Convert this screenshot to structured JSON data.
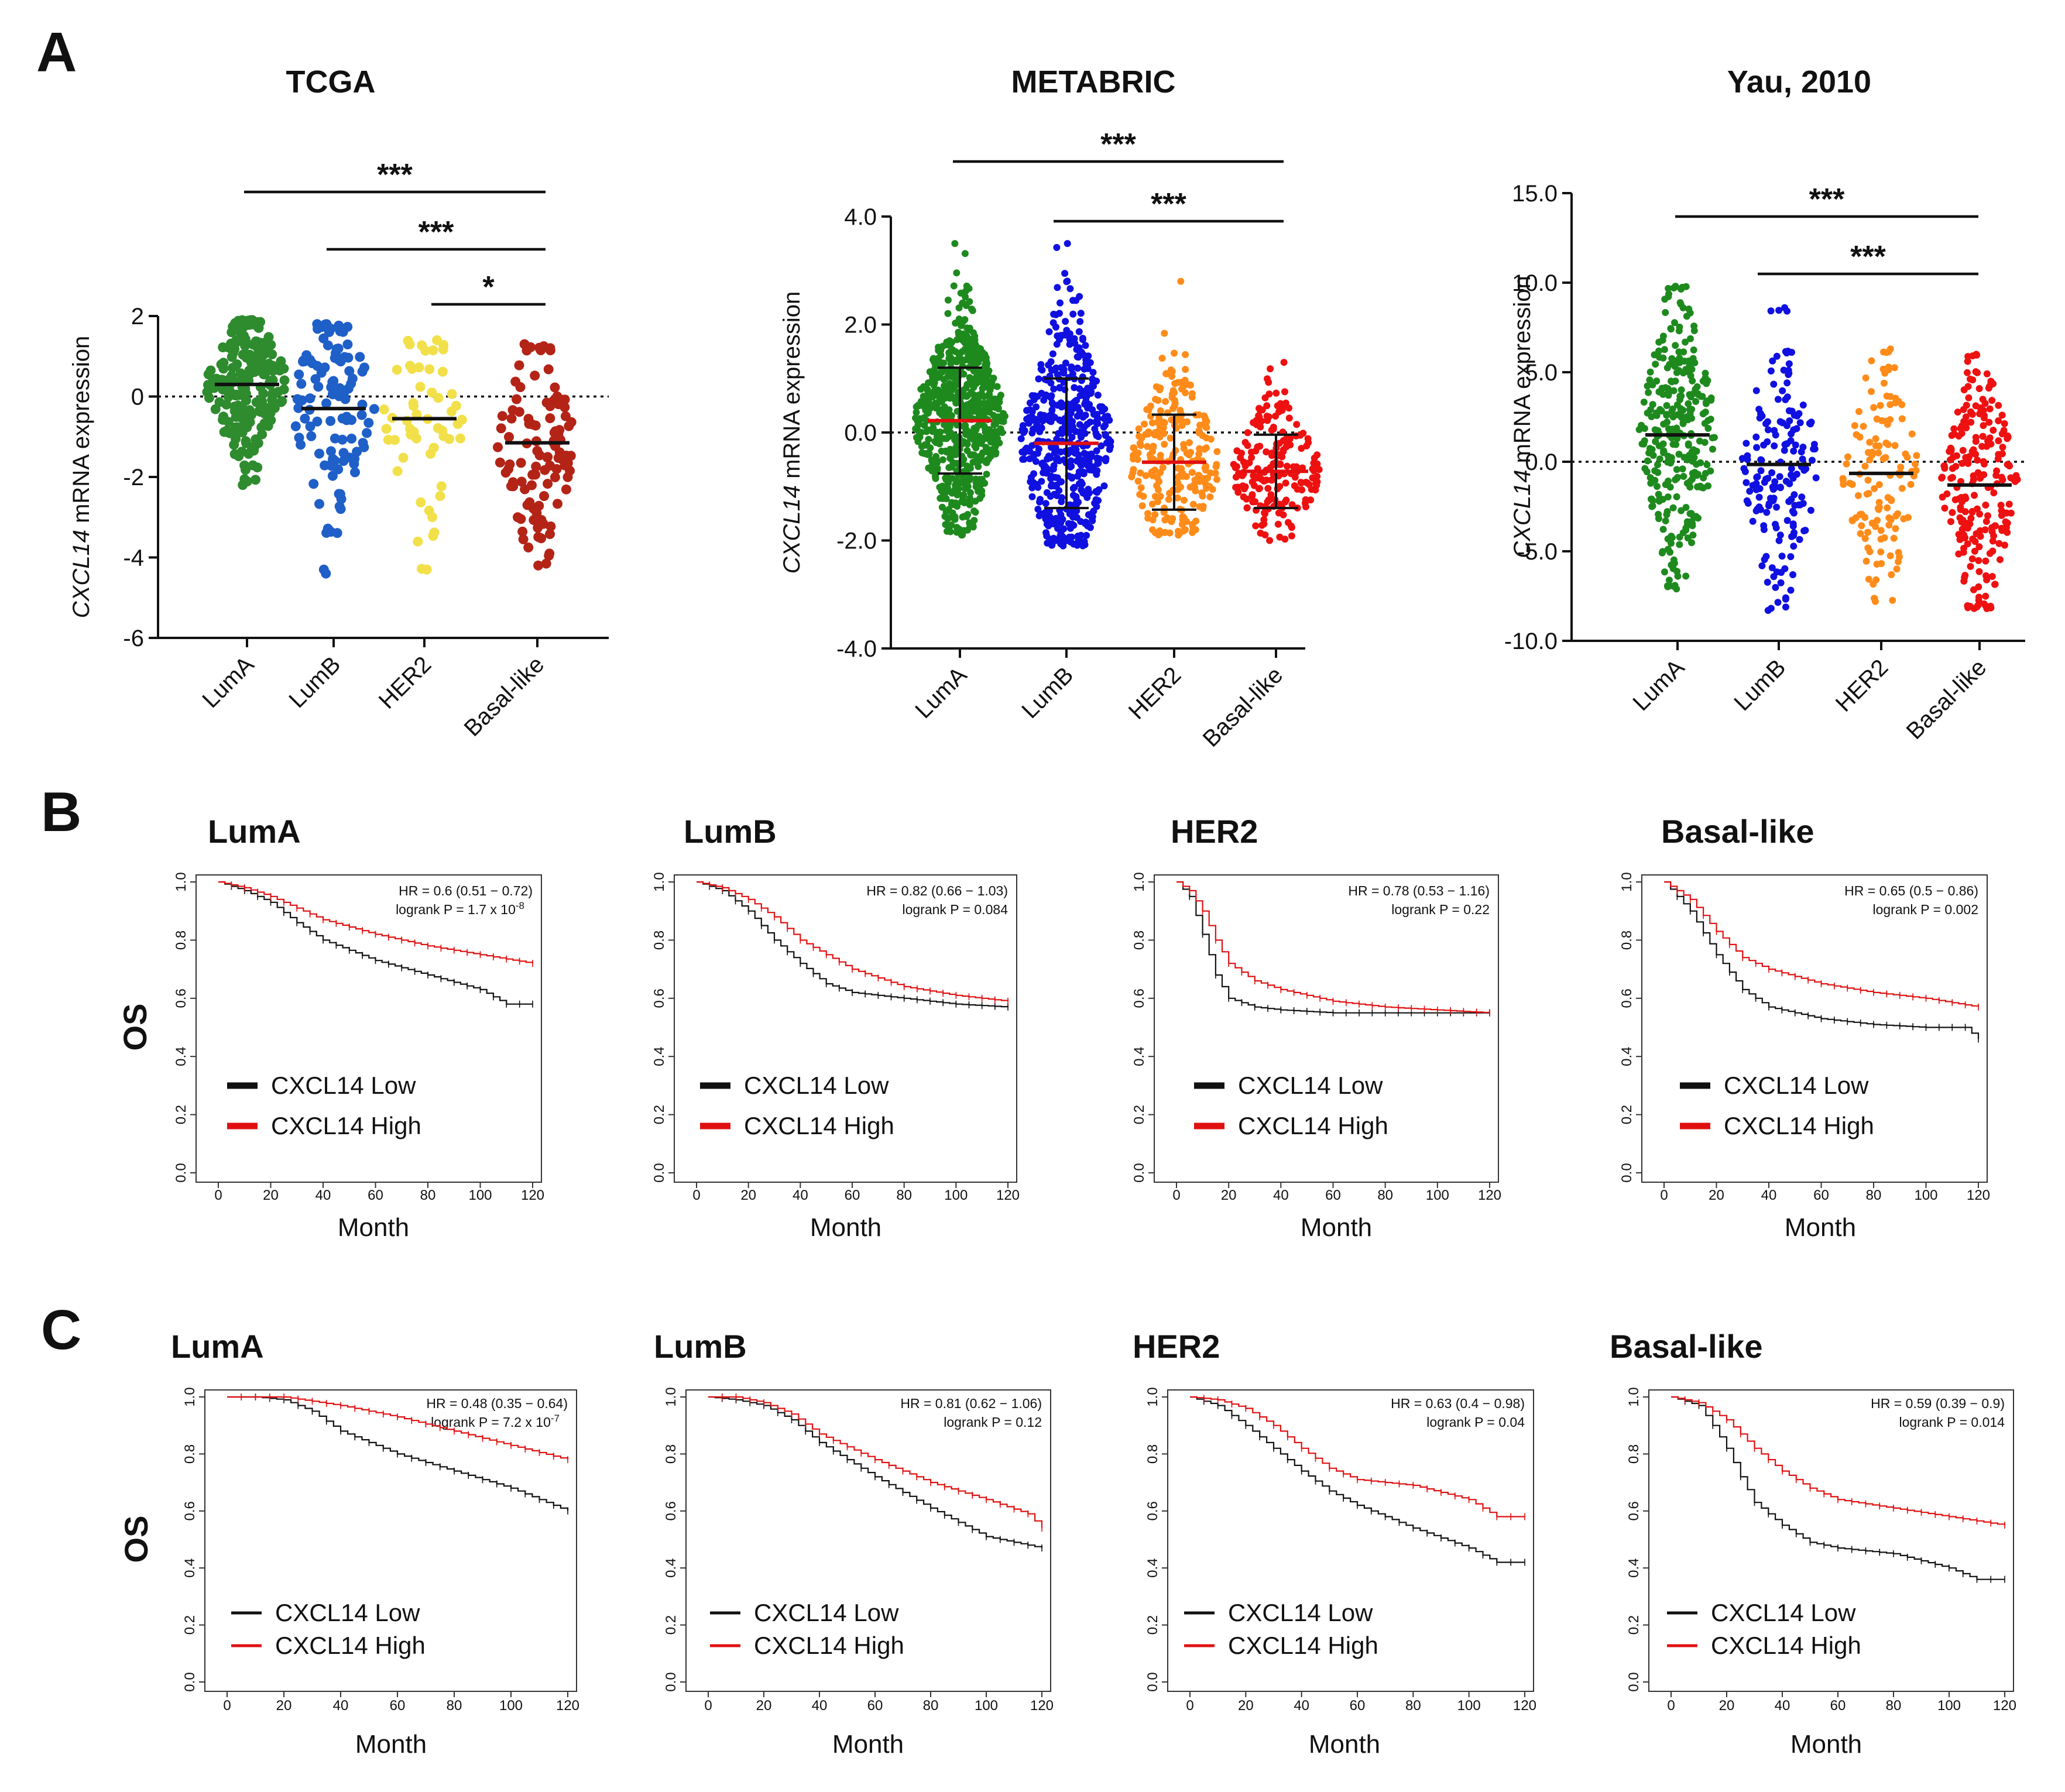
{
  "panels": {
    "a": "A",
    "b": "B",
    "c": "C"
  },
  "chart_data": [
    {
      "type": "scatter",
      "panel": "A",
      "title": "TCGA",
      "ylabel_italic": "CXCL14",
      "ylabel_rest": " mRNA expression",
      "categories": [
        "LumA",
        "LumB",
        "HER2",
        "Basal-like"
      ],
      "colors": [
        "#2e8b2e",
        "#1f5fc8",
        "#f2e04a",
        "#b32417"
      ],
      "ylim": [
        -6,
        2
      ],
      "yticks": [
        2,
        0,
        -2,
        -4,
        -6
      ],
      "ytick_labels": [
        "2",
        "0",
        "-2",
        "-4",
        "-6"
      ],
      "counts": [
        220,
        110,
        55,
        110
      ],
      "ranges": [
        [
          -2.2,
          1.9
        ],
        [
          -4.4,
          1.8
        ],
        [
          -4.3,
          1.4
        ],
        [
          -4.2,
          1.3
        ]
      ],
      "means": [
        0.3,
        -0.3,
        -0.55,
        -1.15
      ],
      "mean_line_color": "#111111",
      "sd": null,
      "significance": [
        {
          "from": 0,
          "to": 3,
          "label": "***"
        },
        {
          "from": 1,
          "to": 3,
          "label": "***"
        },
        {
          "from": 2,
          "to": 3,
          "label": "*"
        }
      ]
    },
    {
      "type": "scatter",
      "panel": "A",
      "title": "METABRIC",
      "ylabel_italic": "CXCL14",
      "ylabel_rest": " mRNA expression",
      "categories": [
        "LumA",
        "LumB",
        "HER2",
        "Basal-like"
      ],
      "colors": [
        "#1e8a1e",
        "#1010e0",
        "#ff8c1a",
        "#ee1111"
      ],
      "ylim": [
        -4,
        4
      ],
      "yticks": [
        4,
        2,
        0,
        -2,
        -4
      ],
      "ytick_labels": [
        "4.0",
        "2.0",
        "0.0",
        "-2.0",
        "-4.0"
      ],
      "counts": [
        680,
        480,
        240,
        200
      ],
      "ranges": [
        [
          -1.9,
          3.5
        ],
        [
          -2.1,
          3.5
        ],
        [
          -1.9,
          2.8
        ],
        [
          -2.0,
          1.3
        ]
      ],
      "means": [
        0.22,
        -0.2,
        -0.55,
        -0.72
      ],
      "mean_line_color": "#e01010",
      "sd": [
        0.98,
        1.2,
        0.88,
        0.68
      ],
      "significance": [
        {
          "from": 0,
          "to": 3,
          "label": "***"
        },
        {
          "from": 1,
          "to": 3,
          "label": "***"
        }
      ]
    },
    {
      "type": "scatter",
      "panel": "A",
      "title": "Yau, 2010",
      "ylabel_italic": "CXCL14",
      "ylabel_rest": " mRNA expression",
      "categories": [
        "LumA",
        "LumB",
        "HER2",
        "Basal-like"
      ],
      "colors": [
        "#1e8a1e",
        "#1010e0",
        "#ff8c1a",
        "#ee1111"
      ],
      "ylim": [
        -10,
        15
      ],
      "yticks": [
        15,
        10,
        5,
        0,
        -5,
        -10
      ],
      "ytick_labels": [
        "15.0",
        "10.0",
        "5.0",
        "0.0",
        "-5.0",
        "-10.0"
      ],
      "counts": [
        300,
        170,
        130,
        230
      ],
      "ranges": [
        [
          -7.1,
          9.8
        ],
        [
          -8.3,
          8.6
        ],
        [
          -7.8,
          6.3
        ],
        [
          -8.2,
          6.0
        ]
      ],
      "means": [
        1.5,
        -0.15,
        -0.65,
        -1.3
      ],
      "mean_line_color": "#111111",
      "sd": null,
      "significance": [
        {
          "from": 0,
          "to": 3,
          "label": "***"
        },
        {
          "from": 1,
          "to": 3,
          "label": "***"
        }
      ]
    },
    {
      "type": "line",
      "panel": "B",
      "title": "LumA",
      "xlabel": "Month",
      "ylabel": "OS",
      "xlim": [
        0,
        120
      ],
      "ylim": [
        0,
        1
      ],
      "xticks": [
        0,
        20,
        40,
        60,
        80,
        100,
        120
      ],
      "yticks": [
        0.0,
        0.2,
        0.4,
        0.6,
        0.8,
        1.0
      ],
      "ytick_labels": [
        "0.0",
        "0.2",
        "0.4",
        "0.6",
        "0.8",
        "1.0"
      ],
      "hr_text": "HR = 0.6 (0.51 − 0.72)",
      "p_text": "logrank P = 1.7 x 10",
      "p_exp": "-8",
      "series": [
        {
          "name": "CXCL14 Low",
          "color": "#111111",
          "x": [
            0,
            10,
            20,
            30,
            40,
            60,
            80,
            100,
            110,
            120
          ],
          "y": [
            1.0,
            0.97,
            0.93,
            0.86,
            0.8,
            0.73,
            0.68,
            0.63,
            0.58,
            0.58
          ]
        },
        {
          "name": "CXCL14 High",
          "color": "#e01010",
          "x": [
            0,
            10,
            20,
            30,
            40,
            60,
            80,
            100,
            120
          ],
          "y": [
            1.0,
            0.98,
            0.95,
            0.91,
            0.87,
            0.82,
            0.78,
            0.75,
            0.72
          ]
        }
      ]
    },
    {
      "type": "line",
      "panel": "B",
      "title": "LumB",
      "xlabel": "Month",
      "ylabel": "OS",
      "xlim": [
        0,
        120
      ],
      "ylim": [
        0,
        1
      ],
      "xticks": [
        0,
        20,
        40,
        60,
        80,
        100,
        120
      ],
      "yticks": [
        0.0,
        0.2,
        0.4,
        0.6,
        0.8,
        1.0
      ],
      "ytick_labels": [
        "0.0",
        "0.2",
        "0.4",
        "0.6",
        "0.8",
        "1.0"
      ],
      "hr_text": "HR = 0.82 (0.66 − 1.03)",
      "p_text": "logrank P = 0.084",
      "p_exp": "",
      "series": [
        {
          "name": "CXCL14 Low",
          "color": "#111111",
          "x": [
            0,
            10,
            20,
            30,
            40,
            50,
            60,
            80,
            100,
            120
          ],
          "y": [
            1.0,
            0.97,
            0.9,
            0.8,
            0.72,
            0.65,
            0.62,
            0.6,
            0.58,
            0.57
          ]
        },
        {
          "name": "CXCL14 High",
          "color": "#e01010",
          "x": [
            0,
            10,
            20,
            30,
            40,
            60,
            80,
            100,
            120
          ],
          "y": [
            1.0,
            0.98,
            0.94,
            0.88,
            0.8,
            0.7,
            0.64,
            0.61,
            0.59
          ]
        }
      ]
    },
    {
      "type": "line",
      "panel": "B",
      "title": "HER2",
      "xlabel": "Month",
      "ylabel": "OS",
      "xlim": [
        0,
        120
      ],
      "ylim": [
        0,
        1
      ],
      "xticks": [
        0,
        20,
        40,
        60,
        80,
        100,
        120
      ],
      "yticks": [
        0.0,
        0.2,
        0.4,
        0.6,
        0.8,
        1.0
      ],
      "ytick_labels": [
        "0.0",
        "0.2",
        "0.4",
        "0.6",
        "0.8",
        "1.0"
      ],
      "hr_text": "HR = 0.78 (0.53 − 1.16)",
      "p_text": "logrank P = 0.22",
      "p_exp": "",
      "series": [
        {
          "name": "CXCL14 Low",
          "color": "#111111",
          "x": [
            0,
            5,
            10,
            15,
            20,
            30,
            40,
            60,
            120
          ],
          "y": [
            1.0,
            0.95,
            0.82,
            0.68,
            0.6,
            0.57,
            0.56,
            0.55,
            0.55
          ]
        },
        {
          "name": "CXCL14 High",
          "color": "#e01010",
          "x": [
            0,
            5,
            10,
            15,
            20,
            30,
            40,
            60,
            80,
            120
          ],
          "y": [
            1.0,
            0.97,
            0.9,
            0.8,
            0.72,
            0.66,
            0.63,
            0.59,
            0.57,
            0.55
          ]
        }
      ]
    },
    {
      "type": "line",
      "panel": "B",
      "title": "Basal-like",
      "xlabel": "Month",
      "ylabel": "OS",
      "xlim": [
        0,
        120
      ],
      "ylim": [
        0,
        1
      ],
      "xticks": [
        0,
        20,
        40,
        60,
        80,
        100,
        120
      ],
      "yticks": [
        0.0,
        0.2,
        0.4,
        0.6,
        0.8,
        1.0
      ],
      "ytick_labels": [
        "0.0",
        "0.2",
        "0.4",
        "0.6",
        "0.8",
        "1.0"
      ],
      "hr_text": "HR = 0.65 (0.5 − 0.86)",
      "p_text": "logrank P = 0.002",
      "p_exp": "",
      "series": [
        {
          "name": "CXCL14 Low",
          "color": "#111111",
          "x": [
            0,
            10,
            20,
            30,
            40,
            60,
            80,
            100,
            115,
            120
          ],
          "y": [
            1.0,
            0.9,
            0.75,
            0.63,
            0.57,
            0.53,
            0.51,
            0.5,
            0.5,
            0.46
          ]
        },
        {
          "name": "CXCL14 High",
          "color": "#e01010",
          "x": [
            0,
            10,
            20,
            30,
            40,
            60,
            80,
            100,
            120
          ],
          "y": [
            1.0,
            0.94,
            0.83,
            0.74,
            0.7,
            0.65,
            0.62,
            0.6,
            0.57
          ]
        }
      ]
    },
    {
      "type": "line",
      "panel": "C",
      "title": "LumA",
      "xlabel": "Month",
      "ylabel": "OS",
      "xlim": [
        0,
        120
      ],
      "ylim": [
        0,
        1
      ],
      "xticks": [
        0,
        20,
        40,
        60,
        80,
        100,
        120
      ],
      "yticks": [
        0.0,
        0.2,
        0.4,
        0.6,
        0.8,
        1.0
      ],
      "ytick_labels": [
        "0.0",
        "0.2",
        "0.4",
        "0.6",
        "0.8",
        "1.0"
      ],
      "hr_text": "HR = 0.48 (0.35 − 0.64)",
      "p_text": "logrank P = 7.2 x 10",
      "p_exp": "-7",
      "series": [
        {
          "name": "CXCL14 Low",
          "color": "#111111",
          "x": [
            0,
            10,
            20,
            30,
            40,
            60,
            80,
            100,
            120
          ],
          "y": [
            1.0,
            1.0,
            0.99,
            0.95,
            0.88,
            0.8,
            0.74,
            0.68,
            0.6
          ]
        },
        {
          "name": "CXCL14 High",
          "color": "#e01010",
          "x": [
            0,
            20,
            40,
            60,
            80,
            100,
            120
          ],
          "y": [
            1.0,
            1.0,
            0.97,
            0.93,
            0.88,
            0.83,
            0.78
          ]
        }
      ]
    },
    {
      "type": "line",
      "panel": "C",
      "title": "LumB",
      "xlabel": "Month",
      "ylabel": "OS",
      "xlim": [
        0,
        120
      ],
      "ylim": [
        0,
        1
      ],
      "xticks": [
        0,
        20,
        40,
        60,
        80,
        100,
        120
      ],
      "yticks": [
        0.0,
        0.2,
        0.4,
        0.6,
        0.8,
        1.0
      ],
      "ytick_labels": [
        "0.0",
        "0.2",
        "0.4",
        "0.6",
        "0.8",
        "1.0"
      ],
      "hr_text": "HR = 0.81 (0.62 − 1.06)",
      "p_text": "logrank P = 0.12",
      "p_exp": "",
      "series": [
        {
          "name": "CXCL14 Low",
          "color": "#111111",
          "x": [
            0,
            10,
            20,
            30,
            40,
            60,
            80,
            100,
            120
          ],
          "y": [
            1.0,
            0.99,
            0.97,
            0.92,
            0.84,
            0.72,
            0.61,
            0.51,
            0.47
          ]
        },
        {
          "name": "CXCL14 High",
          "color": "#e01010",
          "x": [
            0,
            10,
            20,
            30,
            40,
            60,
            80,
            100,
            115,
            120
          ],
          "y": [
            1.0,
            1.0,
            0.98,
            0.94,
            0.87,
            0.78,
            0.7,
            0.64,
            0.59,
            0.54
          ]
        }
      ]
    },
    {
      "type": "line",
      "panel": "C",
      "title": "HER2",
      "xlabel": "Month",
      "ylabel": "OS",
      "xlim": [
        0,
        120
      ],
      "ylim": [
        0,
        1
      ],
      "xticks": [
        0,
        20,
        40,
        60,
        80,
        100,
        120
      ],
      "yticks": [
        0.0,
        0.2,
        0.4,
        0.6,
        0.8,
        1.0
      ],
      "ytick_labels": [
        "0.0",
        "0.2",
        "0.4",
        "0.6",
        "0.8",
        "1.0"
      ],
      "hr_text": "HR = 0.63 (0.4 − 0.98)",
      "p_text": "logrank P = 0.04",
      "p_exp": "",
      "series": [
        {
          "name": "CXCL14 Low",
          "color": "#111111",
          "x": [
            0,
            10,
            20,
            30,
            40,
            50,
            60,
            80,
            100,
            110,
            120
          ],
          "y": [
            1.0,
            0.97,
            0.9,
            0.82,
            0.74,
            0.67,
            0.62,
            0.54,
            0.47,
            0.42,
            0.42
          ]
        },
        {
          "name": "CXCL14 High",
          "color": "#e01010",
          "x": [
            0,
            10,
            20,
            30,
            40,
            50,
            60,
            80,
            100,
            110,
            120
          ],
          "y": [
            1.0,
            0.99,
            0.96,
            0.9,
            0.82,
            0.75,
            0.71,
            0.69,
            0.64,
            0.58,
            0.58
          ]
        }
      ]
    },
    {
      "type": "line",
      "panel": "C",
      "title": "Basal-like",
      "xlabel": "Month",
      "ylabel": "OS",
      "xlim": [
        0,
        120
      ],
      "ylim": [
        0,
        1
      ],
      "xticks": [
        0,
        20,
        40,
        60,
        80,
        100,
        120
      ],
      "yticks": [
        0.0,
        0.2,
        0.4,
        0.6,
        0.8,
        1.0
      ],
      "ytick_labels": [
        "0.0",
        "0.2",
        "0.4",
        "0.6",
        "0.8",
        "1.0"
      ],
      "hr_text": "HR = 0.59 (0.39 − 0.9)",
      "p_text": "logrank P = 0.014",
      "p_exp": "",
      "series": [
        {
          "name": "CXCL14 Low",
          "color": "#111111",
          "x": [
            0,
            10,
            15,
            20,
            25,
            30,
            40,
            50,
            60,
            80,
            100,
            110,
            120
          ],
          "y": [
            1.0,
            0.97,
            0.9,
            0.82,
            0.72,
            0.63,
            0.55,
            0.49,
            0.47,
            0.45,
            0.4,
            0.36,
            0.36
          ]
        },
        {
          "name": "CXCL14 High",
          "color": "#e01010",
          "x": [
            0,
            10,
            20,
            30,
            40,
            50,
            60,
            80,
            100,
            120
          ],
          "y": [
            1.0,
            0.98,
            0.92,
            0.82,
            0.74,
            0.68,
            0.64,
            0.61,
            0.58,
            0.55
          ]
        }
      ]
    }
  ]
}
